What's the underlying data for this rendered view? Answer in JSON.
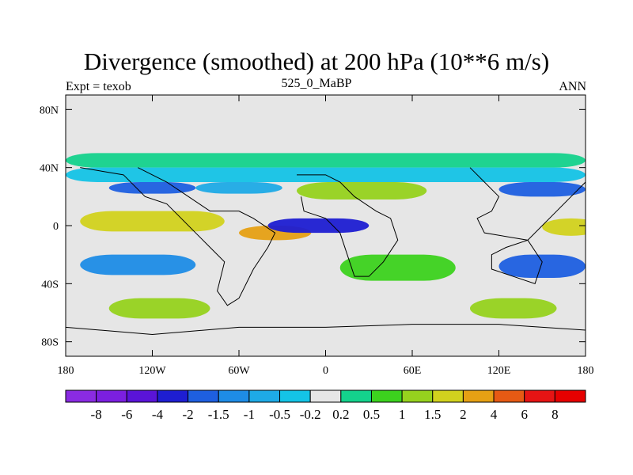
{
  "chart_data": {
    "type": "heatmap",
    "title": "Divergence (smoothed) at 200 hPa (10**6 m/s)",
    "left_label": "Expt = texob",
    "center_label": "525_0_MaBP",
    "right_label": "ANN",
    "x_ticks": [
      "180",
      "120W",
      "60W",
      "0",
      "60E",
      "120E",
      "180"
    ],
    "y_ticks": [
      "80N",
      "40N",
      "0",
      "40S",
      "80S"
    ],
    "xlim": [
      -180,
      180
    ],
    "ylim": [
      -90,
      90
    ],
    "colorbar": {
      "labels": [
        "-8",
        "-6",
        "-4",
        "-2",
        "-1.5",
        "-1",
        "-0.5",
        "-0.2",
        "0.2",
        "0.5",
        "1",
        "1.5",
        "2",
        "4",
        "6",
        "8"
      ],
      "colors": [
        "#8a2be2",
        "#7b1fe0",
        "#5a14d8",
        "#1e1ed2",
        "#1e5fe0",
        "#1e8ce6",
        "#1eaae6",
        "#14c3e6",
        "#e6e6e6",
        "#14d28c",
        "#3cd21e",
        "#96d21e",
        "#d2d21e",
        "#e6a014",
        "#e65a14",
        "#e61414",
        "#e60000"
      ]
    },
    "fields": [
      {
        "value": 0.3,
        "lon": -180,
        "lat": 50,
        "w": 360,
        "h": 10,
        "note": "northern green band"
      },
      {
        "value": -0.3,
        "lon": -180,
        "lat": 40,
        "w": 360,
        "h": 10
      },
      {
        "value": -1.5,
        "lon": -150,
        "lat": 30,
        "w": 60,
        "h": 8
      },
      {
        "value": -0.8,
        "lon": -90,
        "lat": 30,
        "w": 60,
        "h": 8
      },
      {
        "value": 1.2,
        "lon": -20,
        "lat": 30,
        "w": 90,
        "h": 12
      },
      {
        "value": -1.5,
        "lon": 120,
        "lat": 30,
        "w": 60,
        "h": 10
      },
      {
        "value": 1.8,
        "lon": -170,
        "lat": 10,
        "w": 100,
        "h": 14
      },
      {
        "value": 2.2,
        "lon": -60,
        "lat": 0,
        "w": 50,
        "h": 10
      },
      {
        "value": -3,
        "lon": -40,
        "lat": 5,
        "w": 70,
        "h": 10
      },
      {
        "value": 2,
        "lon": 150,
        "lat": 5,
        "w": 40,
        "h": 12
      },
      {
        "value": -1.2,
        "lon": -170,
        "lat": -20,
        "w": 80,
        "h": 14
      },
      {
        "value": 1,
        "lon": 10,
        "lat": -20,
        "w": 80,
        "h": 18
      },
      {
        "value": -1.5,
        "lon": 120,
        "lat": -20,
        "w": 60,
        "h": 16
      },
      {
        "value": 1.2,
        "lon": -150,
        "lat": -50,
        "w": 70,
        "h": 14
      },
      {
        "value": 1.5,
        "lon": 100,
        "lat": -50,
        "w": 60,
        "h": 14
      }
    ]
  }
}
